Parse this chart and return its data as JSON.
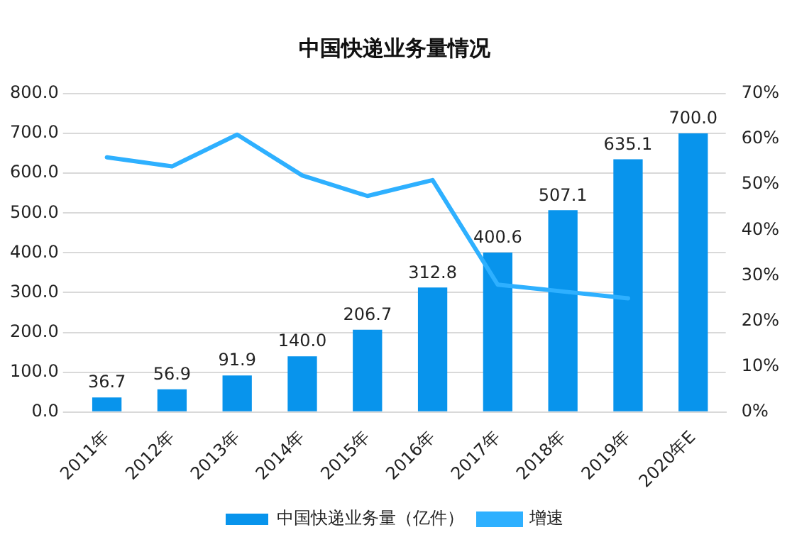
{
  "chart_data": {
    "type": "bar",
    "title": "中国快递业务量情况",
    "categories": [
      "2011年",
      "2012年",
      "2013年",
      "2014年",
      "2015年",
      "2016年",
      "2017年",
      "2018年",
      "2019年",
      "2020年E"
    ],
    "series": [
      {
        "name": "中国快递业务量（亿件）",
        "color": "#0894ec",
        "values": [
          36.7,
          56.9,
          91.9,
          140.0,
          206.7,
          312.8,
          400.6,
          507.1,
          635.1,
          700.0
        ],
        "value_labels": [
          "36.7",
          "56.9",
          "91.9",
          "140.0",
          "206.7",
          "312.8",
          "400.6",
          "507.1",
          "635.1",
          "700.0"
        ]
      },
      {
        "name": "增速",
        "type": "line",
        "axis": "y2",
        "color": "#2eb0ff",
        "values": [
          56,
          54,
          61,
          52,
          47.5,
          51,
          28,
          26.5,
          25,
          null
        ]
      }
    ],
    "ylim": [
      0,
      800
    ],
    "yticks": [
      {
        "value": 0,
        "label": "0.0"
      },
      {
        "value": 100,
        "label": "100.0"
      },
      {
        "value": 200,
        "label": "200.0"
      },
      {
        "value": 300,
        "label": "300.0"
      },
      {
        "value": 400,
        "label": "400.0"
      },
      {
        "value": 500,
        "label": "500.0"
      },
      {
        "value": 600,
        "label": "600.0"
      },
      {
        "value": 700,
        "label": "700.0"
      },
      {
        "value": 800,
        "label": "800.0"
      }
    ],
    "y2lim": [
      0,
      70
    ],
    "y2ticks": [
      {
        "value": 0,
        "label": "0%"
      },
      {
        "value": 10,
        "label": "10%"
      },
      {
        "value": 20,
        "label": "20%"
      },
      {
        "value": 30,
        "label": "30%"
      },
      {
        "value": 40,
        "label": "40%"
      },
      {
        "value": 50,
        "label": "50%"
      },
      {
        "value": 60,
        "label": "60%"
      },
      {
        "value": 70,
        "label": "70%"
      }
    ],
    "grid": "y",
    "legend": "bottom",
    "marker": "none",
    "line_style": "solid"
  }
}
